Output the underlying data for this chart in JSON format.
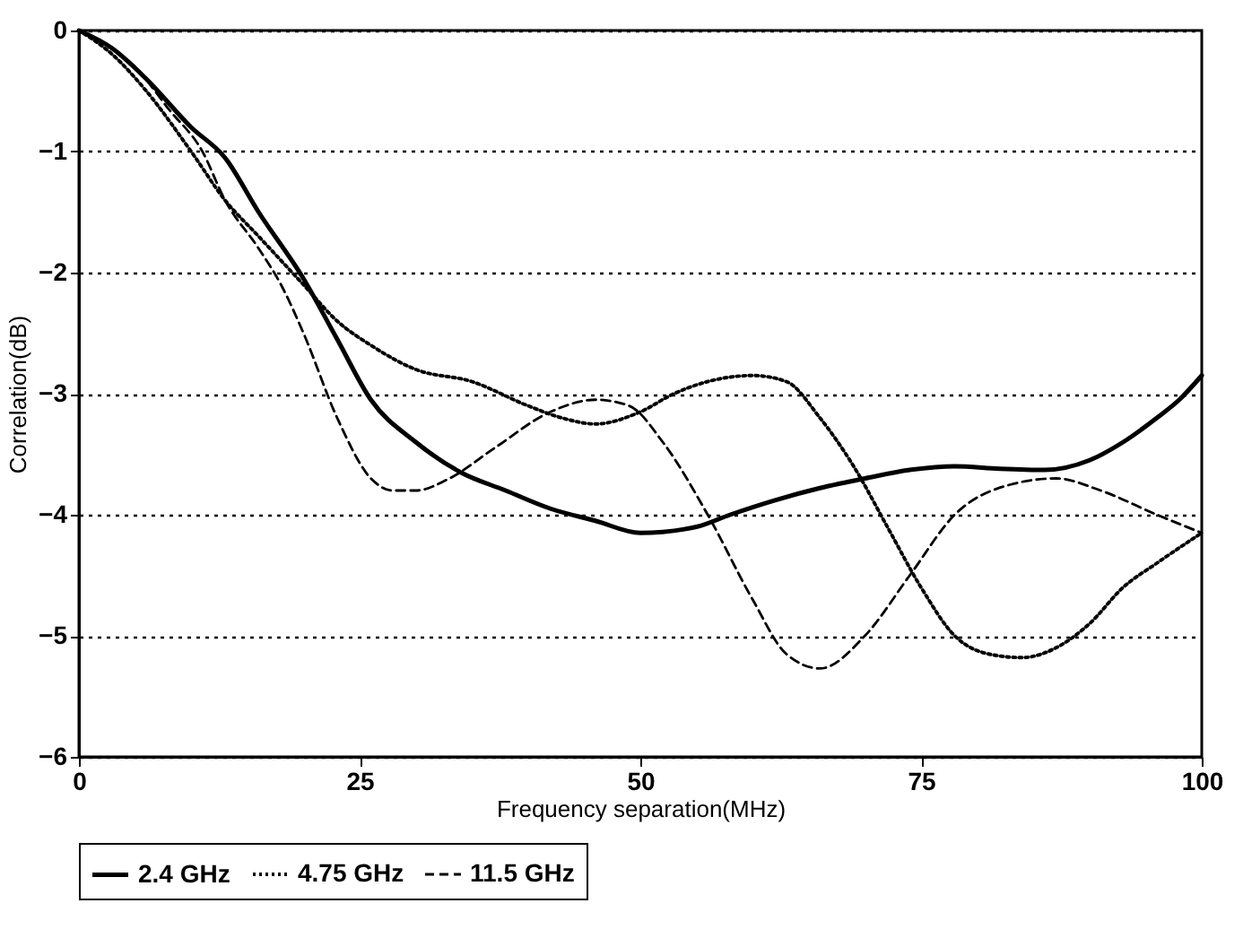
{
  "chart_data": {
    "type": "line",
    "xlabel": "Frequency separation(MHz)",
    "ylabel": "Correlation(dB)",
    "xlim": [
      0,
      100
    ],
    "ylim": [
      -6,
      0
    ],
    "xticks": [
      0,
      25,
      50,
      75,
      100
    ],
    "yticks": [
      0,
      -1,
      -2,
      -3,
      -4,
      -5,
      -6
    ],
    "grid": "y",
    "legend": "bottom",
    "marker": "none",
    "series": [
      {
        "name": "2.4 GHz",
        "color": "#000000",
        "line_style": "solid",
        "x": [
          0,
          3,
          6,
          10,
          13,
          16,
          20,
          23,
          26,
          30,
          34,
          38,
          42,
          46,
          50,
          55,
          58,
          62,
          66,
          70,
          74,
          78,
          82,
          86,
          90,
          93,
          96,
          98,
          100
        ],
        "values": [
          0,
          -0.15,
          -0.4,
          -0.8,
          -1.05,
          -1.5,
          -2.05,
          -2.55,
          -3.05,
          -3.4,
          -3.65,
          -3.8,
          -3.95,
          -4.05,
          -4.15,
          -4.1,
          -4.0,
          -3.88,
          -3.78,
          -3.7,
          -3.63,
          -3.6,
          -3.62,
          -3.63,
          -3.55,
          -3.4,
          -3.2,
          -3.05,
          -2.85
        ]
      },
      {
        "name": "4.75 GHz",
        "color": "#000000",
        "line_style": "dotted",
        "x": [
          0,
          3,
          6,
          10,
          13,
          16,
          20,
          23,
          26,
          30,
          35,
          40,
          43,
          46,
          50,
          53,
          56,
          60,
          63,
          66,
          69,
          72,
          75,
          78,
          81,
          84,
          87,
          90,
          93,
          96,
          100
        ],
        "values": [
          0,
          -0.2,
          -0.5,
          -1.0,
          -1.4,
          -1.7,
          -2.1,
          -2.4,
          -2.6,
          -2.8,
          -2.9,
          -3.1,
          -3.2,
          -3.25,
          -3.15,
          -3.0,
          -2.9,
          -2.85,
          -2.9,
          -3.2,
          -3.6,
          -4.1,
          -4.6,
          -5.0,
          -5.15,
          -5.18,
          -5.1,
          -4.9,
          -4.6,
          -4.4,
          -4.15
        ]
      },
      {
        "name": "11.5 GHz",
        "color": "#000000",
        "line_style": "dashed",
        "x": [
          0,
          3,
          5,
          8,
          11,
          13,
          16,
          18,
          20,
          23,
          26,
          28,
          30,
          33,
          37,
          42,
          46,
          49,
          52,
          56,
          60,
          63,
          66,
          70,
          74,
          78,
          83,
          87,
          91,
          96,
          100
        ],
        "values": [
          0,
          -0.15,
          -0.3,
          -0.65,
          -1.0,
          -1.4,
          -1.8,
          -2.1,
          -2.5,
          -3.2,
          -3.7,
          -3.8,
          -3.8,
          -3.7,
          -3.45,
          -3.15,
          -3.05,
          -3.1,
          -3.4,
          -4.0,
          -4.7,
          -5.15,
          -5.27,
          -5.0,
          -4.5,
          -4.0,
          -3.75,
          -3.7,
          -3.8,
          -4.0,
          -4.15
        ]
      }
    ]
  }
}
